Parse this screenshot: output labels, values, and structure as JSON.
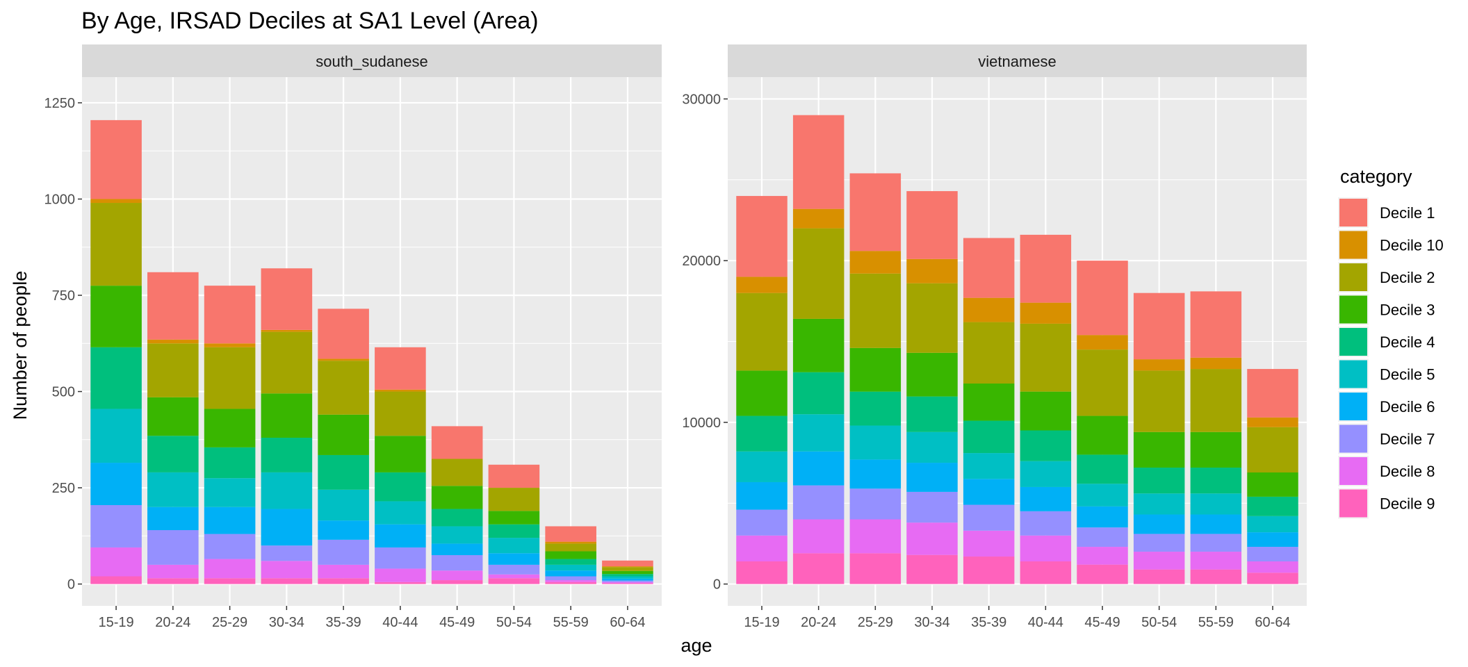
{
  "chart_data": {
    "type": "bar",
    "stacked": true,
    "title": "By Age,  IRSAD Deciles at SA1 Level (Area)",
    "xlabel": "age",
    "ylabel": "Number of people",
    "categories": [
      "15-19",
      "20-24",
      "25-29",
      "30-34",
      "35-39",
      "40-44",
      "45-49",
      "50-54",
      "55-59",
      "60-64"
    ],
    "legend": {
      "title": "category",
      "position": "right",
      "items": [
        {
          "name": "Decile 1",
          "color": "#F8766D"
        },
        {
          "name": "Decile 10",
          "color": "#D89000"
        },
        {
          "name": "Decile 2",
          "color": "#A3A500"
        },
        {
          "name": "Decile 3",
          "color": "#39B600"
        },
        {
          "name": "Decile 4",
          "color": "#00BF7D"
        },
        {
          "name": "Decile 5",
          "color": "#00BFC4"
        },
        {
          "name": "Decile 6",
          "color": "#00B0F6"
        },
        {
          "name": "Decile 7",
          "color": "#9590FF"
        },
        {
          "name": "Decile 8",
          "color": "#E76BF3"
        },
        {
          "name": "Decile 9",
          "color": "#FF62BC"
        }
      ]
    },
    "stack_order_bottom_to_top": [
      "Decile 9",
      "Decile 8",
      "Decile 7",
      "Decile 6",
      "Decile 5",
      "Decile 4",
      "Decile 3",
      "Decile 2",
      "Decile 10",
      "Decile 1"
    ],
    "panels": [
      {
        "strip": "south_sudanese",
        "ylim": [
          0,
          1260
        ],
        "yticks": [
          0,
          250,
          500,
          750,
          1000,
          1250
        ],
        "series": [
          {
            "name": "Decile 9",
            "values": [
              20,
              15,
              15,
              15,
              15,
              5,
              10,
              15,
              5,
              2
            ]
          },
          {
            "name": "Decile 8",
            "values": [
              75,
              35,
              50,
              45,
              35,
              35,
              25,
              10,
              5,
              3
            ]
          },
          {
            "name": "Decile 7",
            "values": [
              110,
              90,
              65,
              40,
              65,
              55,
              40,
              25,
              10,
              4
            ]
          },
          {
            "name": "Decile 6",
            "values": [
              110,
              60,
              70,
              95,
              50,
              60,
              30,
              30,
              15,
              5
            ]
          },
          {
            "name": "Decile 5",
            "values": [
              140,
              90,
              75,
              95,
              80,
              60,
              45,
              40,
              15,
              6
            ]
          },
          {
            "name": "Decile 4",
            "values": [
              160,
              95,
              80,
              90,
              90,
              75,
              45,
              35,
              15,
              6
            ]
          },
          {
            "name": "Decile 3",
            "values": [
              160,
              100,
              100,
              115,
              105,
              95,
              60,
              35,
              20,
              8
            ]
          },
          {
            "name": "Decile 2",
            "values": [
              215,
              140,
              160,
              160,
              140,
              115,
              70,
              60,
              20,
              10
            ]
          },
          {
            "name": "Decile 10",
            "values": [
              10,
              10,
              10,
              5,
              5,
              5,
              0,
              0,
              5,
              2
            ]
          },
          {
            "name": "Decile 1",
            "values": [
              205,
              175,
              150,
              160,
              130,
              110,
              85,
              60,
              40,
              15
            ]
          }
        ]
      },
      {
        "strip": "vietnamese",
        "ylim": [
          0,
          30000
        ],
        "yticks": [
          0,
          10000,
          20000,
          30000
        ],
        "series": [
          {
            "name": "Decile 9",
            "values": [
              1400,
              1900,
              1900,
              1800,
              1700,
              1400,
              1200,
              900,
              900,
              700
            ]
          },
          {
            "name": "Decile 8",
            "values": [
              1600,
              2100,
              2100,
              2000,
              1600,
              1600,
              1100,
              1100,
              1100,
              700
            ]
          },
          {
            "name": "Decile 7",
            "values": [
              1600,
              2100,
              1900,
              1900,
              1600,
              1500,
              1200,
              1100,
              1100,
              900
            ]
          },
          {
            "name": "Decile 6",
            "values": [
              1700,
              2100,
              1800,
              1800,
              1600,
              1500,
              1300,
              1200,
              1200,
              900
            ]
          },
          {
            "name": "Decile 5",
            "values": [
              1900,
              2300,
              2100,
              1900,
              1600,
              1600,
              1400,
              1300,
              1300,
              1000
            ]
          },
          {
            "name": "Decile 4",
            "values": [
              2200,
              2600,
              2100,
              2200,
              2000,
              1900,
              1800,
              1600,
              1600,
              1200
            ]
          },
          {
            "name": "Decile 3",
            "values": [
              2800,
              3300,
              2700,
              2700,
              2300,
              2400,
              2400,
              2200,
              2200,
              1500
            ]
          },
          {
            "name": "Decile 2",
            "values": [
              4800,
              5600,
              4600,
              4300,
              3800,
              4200,
              4100,
              3800,
              3900,
              2800
            ]
          },
          {
            "name": "Decile 10",
            "values": [
              1000,
              1200,
              1400,
              1500,
              1500,
              1300,
              900,
              700,
              700,
              600
            ]
          },
          {
            "name": "Decile 1",
            "values": [
              5000,
              5800,
              4800,
              4200,
              3700,
              4200,
              4600,
              4100,
              4100,
              3000
            ]
          }
        ]
      }
    ]
  }
}
